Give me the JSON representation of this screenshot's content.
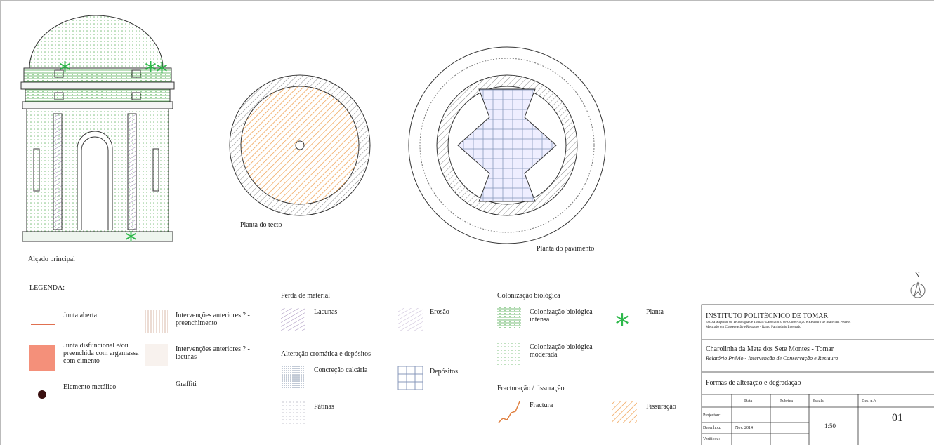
{
  "drawings": {
    "elevation": "Alçado principal",
    "ceiling": "Planta do tecto",
    "floor": "Planta do pavimento"
  },
  "legend": {
    "title": "LEGENDA:",
    "general": [
      "Junta aberta",
      "Junta disfuncional e/ou preenchida com argamassa com cimento",
      "Elemento metálico",
      "Intervenções anteriores ? - preenchimento",
      "Intervenções anteriores ? - lacunas",
      "Graffiti"
    ],
    "loss": {
      "title": "Perda de material",
      "items": [
        "Lacunas",
        "Erosão"
      ]
    },
    "chromatic": {
      "title": "Alteração cromática e depósitos",
      "items": [
        "Concreção calcária",
        "Depósitos",
        "Pátinas"
      ]
    },
    "biological": {
      "title": "Colonização biológica",
      "items": [
        "Colonização biológica intensa",
        "Colonização biológica moderada",
        "Planta"
      ]
    },
    "fracture": {
      "title": "Fracturação / fissuração",
      "items": [
        "Fractura",
        "Fissuração"
      ]
    }
  },
  "north": "N",
  "title_block": {
    "institution": "INSTITUTO POLITÉCNICO DE TOMAR",
    "school": "Escola Superior de Tecnologia de Tomar / Laboratório de Conservação e Restauro de Materiais Pétreos",
    "program": "Mestrado em Conservação e Restauro - Ramo Património Integrado",
    "project": "Charolinha da Mata dos Sete Montes - Tomar",
    "report": "Relatório Prévio - Intervenção de Conservação e Restauro",
    "sheet": "Formas de alteração e degradação",
    "headers": [
      "Data",
      "Rubrica",
      "Escala:",
      "Des. n.º:"
    ],
    "roles": [
      "Projectou:",
      "Desenhou:",
      "Verificou:"
    ],
    "date": "Nov. 2014",
    "scale": "1:50",
    "number": "01"
  }
}
